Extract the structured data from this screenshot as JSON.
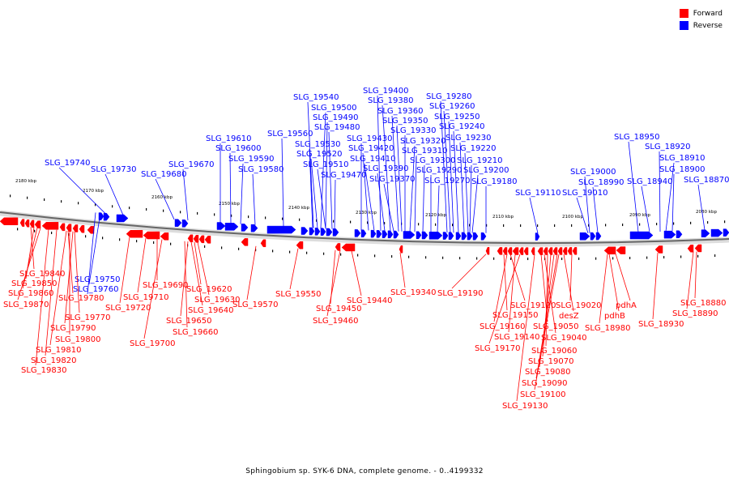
{
  "legend": {
    "forward_label": "Forward",
    "reverse_label": "Reverse",
    "forward_color": "#ff0000",
    "reverse_color": "#0000ff"
  },
  "caption": "Sphingobium sp. SYK-6 DNA, complete genome. - 0..4199332",
  "scale": {
    "ticks": [
      {
        "label": "2180 kbp"
      },
      {
        "label": "2170 kbp"
      },
      {
        "label": "2160 kbp"
      },
      {
        "label": "2150 kbp"
      },
      {
        "label": "2140 kbp"
      },
      {
        "label": "2130 kbp"
      },
      {
        "label": "2120 kbp"
      },
      {
        "label": "2110 kbp"
      },
      {
        "label": "2100 kbp"
      },
      {
        "label": "2090 kbp"
      },
      {
        "label": "2080 kbp"
      }
    ]
  },
  "reverse_labels": [
    "SLG_19740",
    "SLG_19730",
    "SLG_19680",
    "SLG_19670",
    "SLG_19610",
    "SLG_19600",
    "SLG_19590",
    "SLG_19580",
    "SLG_19560",
    "SLG_19540",
    "SLG_19530",
    "SLG_19520",
    "SLG_19510",
    "SLG_19500",
    "SLG_19490",
    "SLG_19480",
    "SLG_19470",
    "SLG_19430",
    "SLG_19420",
    "SLG_19410",
    "SLG_19400",
    "SLG_19390",
    "SLG_19380",
    "SLG_19370",
    "SLG_19360",
    "SLG_19350",
    "SLG_19330",
    "SLG_19320",
    "SLG_19310",
    "SLG_19300",
    "SLG_19290",
    "SLG_19280",
    "SLG_19270",
    "SLG_19260",
    "SLG_19250",
    "SLG_19240",
    "SLG_19230",
    "SLG_19220",
    "SLG_19210",
    "SLG_19200",
    "SLG_19180",
    "SLG_19110",
    "SLG_19000",
    "SLG_18990",
    "SLG_19010",
    "SLG_18950",
    "SLG_18940",
    "SLG_18920",
    "SLG_18910",
    "SLG_18900",
    "SLG_18870",
    "SLG_19750",
    "SLG_19760"
  ],
  "forward_labels": [
    "SLG_19840",
    "SLG_19850",
    "SLG_19860",
    "SLG_19870",
    "SLG_19780",
    "SLG_19770",
    "SLG_19790",
    "SLG_19800",
    "SLG_19810",
    "SLG_19820",
    "SLG_19830",
    "SLG_19720",
    "SLG_19710",
    "SLG_19700",
    "SLG_19690",
    "SLG_19620",
    "SLG_19630",
    "SLG_19640",
    "SLG_19650",
    "SLG_19660",
    "SLG_19570",
    "SLG_19550",
    "SLG_19450",
    "SLG_19440",
    "SLG_19460",
    "SLG_19340",
    "SLG_19190",
    "SLG_19120",
    "SLG_19020",
    "SLG_19150",
    "SLG_19160",
    "SLG_19140",
    "SLG_19050",
    "desZ",
    "SLG_19170",
    "SLG_19040",
    "SLG_19060",
    "SLG_19070",
    "SLG_19080",
    "SLG_19090",
    "SLG_19100",
    "SLG_19130",
    "pdhA",
    "pdhB",
    "SLG_18980",
    "SLG_18930",
    "SLG_18880",
    "SLG_18890"
  ]
}
